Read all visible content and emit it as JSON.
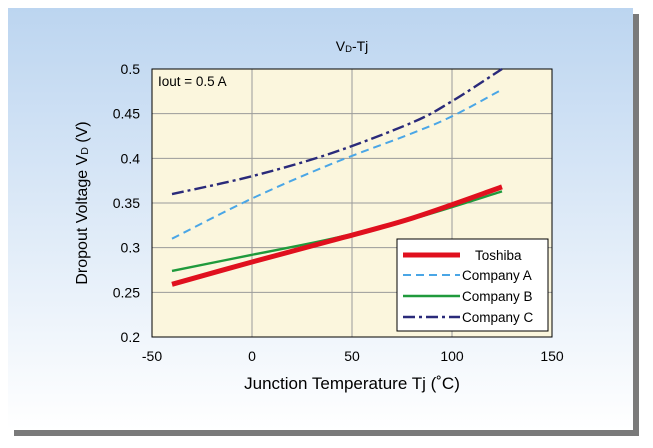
{
  "chart_data": {
    "type": "line",
    "title_main": "V",
    "title_sub": "D",
    "title_rest": "-Tj",
    "annotation": "Iout = 0.5 A",
    "ylabel_main": "Dropout Voltage  V",
    "ylabel_sub": "D",
    "ylabel_rest": " (V)",
    "xlabel": "Junction Temperature  Tj (˚C)",
    "xlim": [
      -50,
      150
    ],
    "ylim": [
      0.2,
      0.5
    ],
    "x_ticks": [
      "-50",
      "0",
      "50",
      "100",
      "150"
    ],
    "y_ticks": [
      "0.2",
      "0.25",
      "0.3",
      "0.35",
      "0.4",
      "0.45",
      "0.5"
    ],
    "grid": true,
    "legend_position": "bottom-right",
    "colors": {
      "plot_background": "#fbf6dd",
      "panel_gradient_top": "#bcd5f0",
      "panel_gradient_bottom": "#ffffff",
      "shadow": "#7a7a7a"
    },
    "series": [
      {
        "name": "Toshiba",
        "color": "#e0101e",
        "dash": "solid",
        "width": 5,
        "x": [
          -40,
          0,
          40,
          80,
          125
        ],
        "y": [
          0.259,
          0.284,
          0.308,
          0.333,
          0.368
        ]
      },
      {
        "name": "Company A",
        "color": "#4aa6e6",
        "dash": "dash",
        "width": 2,
        "x": [
          -40,
          0,
          40,
          80,
          100,
          125
        ],
        "y": [
          0.31,
          0.355,
          0.394,
          0.428,
          0.447,
          0.477
        ]
      },
      {
        "name": "Company B",
        "color": "#1f9a3c",
        "dash": "solid",
        "width": 2.4,
        "x": [
          -40,
          0,
          40,
          80,
          125
        ],
        "y": [
          0.274,
          0.292,
          0.31,
          0.332,
          0.363
        ]
      },
      {
        "name": "Company C",
        "color": "#2a2a7a",
        "dash": "dashdot",
        "width": 2.4,
        "x": [
          -40,
          0,
          40,
          80,
          100,
          125
        ],
        "y": [
          0.36,
          0.38,
          0.406,
          0.44,
          0.464,
          0.5
        ]
      }
    ]
  }
}
